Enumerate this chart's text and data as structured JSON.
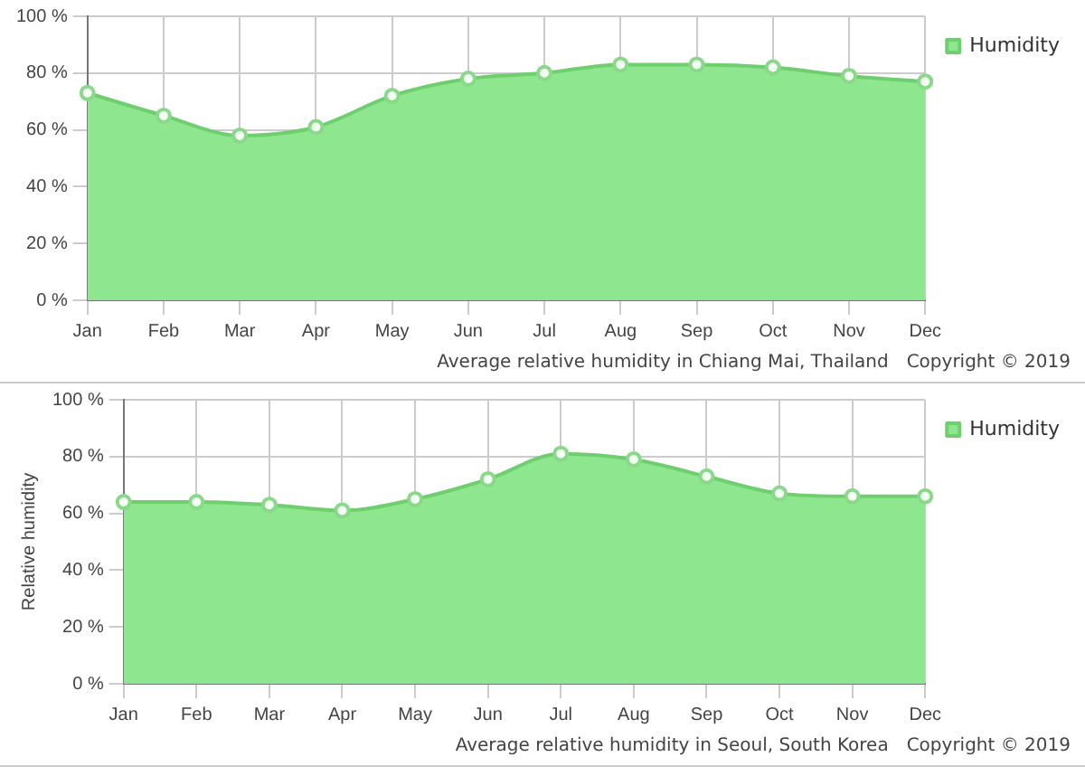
{
  "chart_data": [
    {
      "type": "area",
      "categories": [
        "Jan",
        "Feb",
        "Mar",
        "Apr",
        "May",
        "Jun",
        "Jul",
        "Aug",
        "Sep",
        "Oct",
        "Nov",
        "Dec"
      ],
      "series": [
        {
          "name": "Humidity",
          "color": "#8ee68e",
          "values": [
            73,
            65,
            58,
            61,
            72,
            78,
            80,
            83,
            83,
            82,
            79,
            77
          ]
        }
      ],
      "ylim": [
        0,
        100
      ],
      "yticks": [
        {
          "value": 0,
          "label": "0 %"
        },
        {
          "value": 20,
          "label": "20 %"
        },
        {
          "value": 40,
          "label": "40 %"
        },
        {
          "value": 60,
          "label": "60 %"
        },
        {
          "value": 80,
          "label": "80 %"
        },
        {
          "value": 100,
          "label": "100 %"
        }
      ],
      "grid": true,
      "legend": "top right",
      "marker": "circle",
      "annotations": [
        "Average relative humidity in Chiang Mai, Thailand",
        "Copyright © 2019"
      ]
    },
    {
      "type": "area",
      "categories": [
        "Jan",
        "Feb",
        "Mar",
        "Apr",
        "May",
        "Jun",
        "Jul",
        "Aug",
        "Sep",
        "Oct",
        "Nov",
        "Dec"
      ],
      "series": [
        {
          "name": "Humidity",
          "color": "#8ee68e",
          "values": [
            64,
            64,
            63,
            61,
            65,
            72,
            81,
            79,
            73,
            67,
            66,
            66
          ]
        }
      ],
      "ylabel": "Relative humidity",
      "ylim": [
        0,
        100
      ],
      "yticks": [
        {
          "value": 0,
          "label": "0 %"
        },
        {
          "value": 20,
          "label": "20 %"
        },
        {
          "value": 40,
          "label": "40 %"
        },
        {
          "value": 60,
          "label": "60 %"
        },
        {
          "value": 80,
          "label": "80 %"
        },
        {
          "value": 100,
          "label": "100 %"
        }
      ],
      "grid": true,
      "legend": "top right",
      "marker": "circle",
      "annotations": [
        "Average relative humidity in Seoul, South Korea",
        "Copyright © 2019"
      ]
    }
  ]
}
